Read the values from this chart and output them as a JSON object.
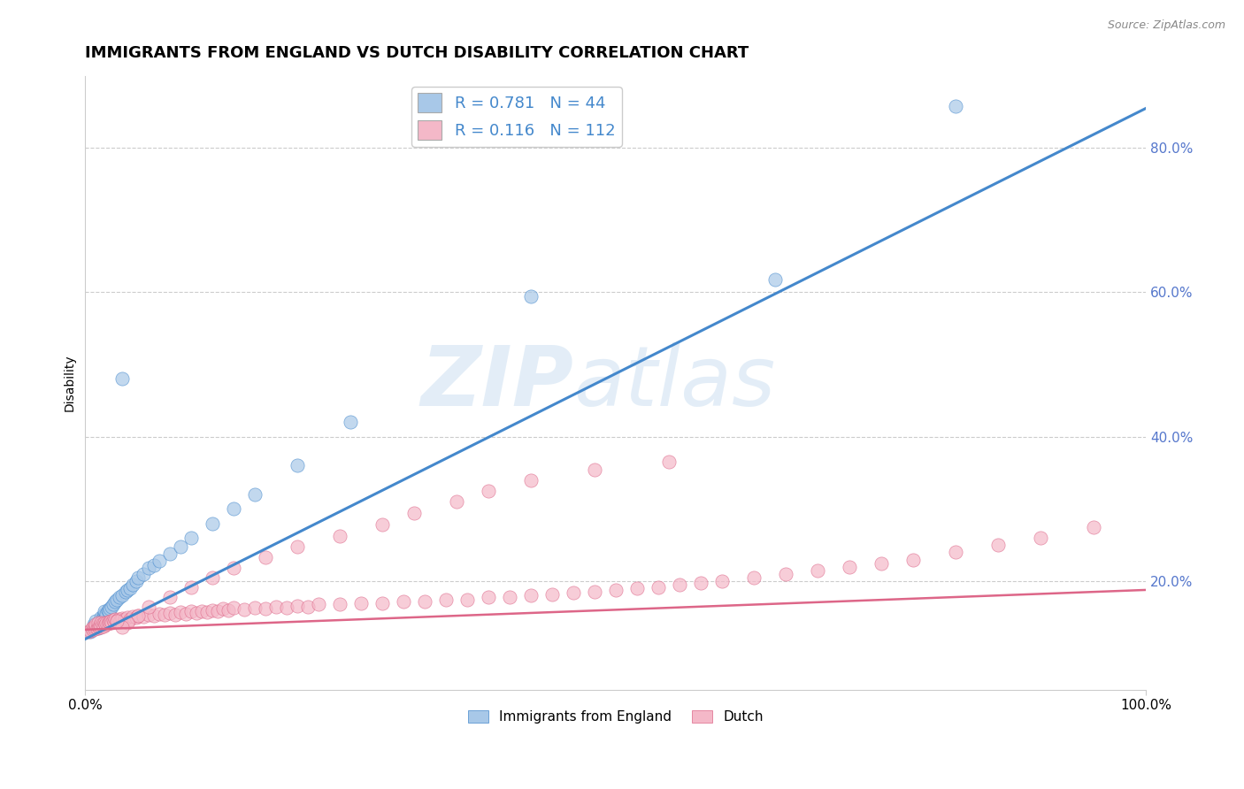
{
  "title": "IMMIGRANTS FROM ENGLAND VS DUTCH DISABILITY CORRELATION CHART",
  "source": "Source: ZipAtlas.com",
  "ylabel": "Disability",
  "watermark": "ZIPatlas",
  "blue_R": 0.781,
  "blue_N": 44,
  "pink_R": 0.116,
  "pink_N": 112,
  "blue_color": "#a8c8e8",
  "pink_color": "#f4b8c8",
  "blue_line_color": "#4488cc",
  "pink_line_color": "#dd6688",
  "ytick_color": "#5577cc",
  "yticks_labels": [
    "20.0%",
    "40.0%",
    "60.0%",
    "80.0%"
  ],
  "ytick_vals": [
    0.2,
    0.4,
    0.6,
    0.8
  ],
  "blue_scatter_x": [
    0.005,
    0.008,
    0.01,
    0.012,
    0.013,
    0.015,
    0.015,
    0.016,
    0.017,
    0.018,
    0.018,
    0.019,
    0.02,
    0.021,
    0.022,
    0.023,
    0.025,
    0.026,
    0.028,
    0.03,
    0.032,
    0.035,
    0.038,
    0.04,
    0.042,
    0.045,
    0.048,
    0.05,
    0.055,
    0.06,
    0.065,
    0.07,
    0.08,
    0.09,
    0.1,
    0.12,
    0.14,
    0.16,
    0.2,
    0.25,
    0.42,
    0.65,
    0.82,
    0.035
  ],
  "blue_scatter_y": [
    0.13,
    0.14,
    0.145,
    0.135,
    0.14,
    0.145,
    0.15,
    0.148,
    0.152,
    0.155,
    0.158,
    0.15,
    0.155,
    0.16,
    0.158,
    0.162,
    0.165,
    0.168,
    0.172,
    0.175,
    0.178,
    0.18,
    0.185,
    0.188,
    0.19,
    0.195,
    0.2,
    0.205,
    0.21,
    0.218,
    0.222,
    0.228,
    0.238,
    0.248,
    0.26,
    0.28,
    0.3,
    0.32,
    0.36,
    0.42,
    0.595,
    0.618,
    0.858,
    0.48
  ],
  "pink_scatter_x": [
    0.003,
    0.005,
    0.006,
    0.007,
    0.008,
    0.009,
    0.01,
    0.01,
    0.011,
    0.012,
    0.012,
    0.013,
    0.014,
    0.015,
    0.015,
    0.016,
    0.017,
    0.018,
    0.019,
    0.02,
    0.021,
    0.022,
    0.023,
    0.024,
    0.025,
    0.026,
    0.027,
    0.028,
    0.03,
    0.031,
    0.033,
    0.035,
    0.037,
    0.04,
    0.042,
    0.045,
    0.048,
    0.05,
    0.055,
    0.06,
    0.065,
    0.07,
    0.075,
    0.08,
    0.085,
    0.09,
    0.095,
    0.1,
    0.105,
    0.11,
    0.115,
    0.12,
    0.125,
    0.13,
    0.135,
    0.14,
    0.15,
    0.16,
    0.17,
    0.18,
    0.19,
    0.2,
    0.21,
    0.22,
    0.24,
    0.26,
    0.28,
    0.3,
    0.32,
    0.34,
    0.36,
    0.38,
    0.4,
    0.42,
    0.44,
    0.46,
    0.48,
    0.5,
    0.52,
    0.54,
    0.56,
    0.58,
    0.6,
    0.63,
    0.66,
    0.69,
    0.72,
    0.75,
    0.78,
    0.82,
    0.86,
    0.9,
    0.95,
    0.55,
    0.48,
    0.42,
    0.38,
    0.35,
    0.31,
    0.28,
    0.24,
    0.2,
    0.17,
    0.14,
    0.12,
    0.1,
    0.08,
    0.06,
    0.05,
    0.04,
    0.035,
    0.03
  ],
  "pink_scatter_y": [
    0.13,
    0.132,
    0.135,
    0.133,
    0.136,
    0.134,
    0.137,
    0.14,
    0.135,
    0.138,
    0.142,
    0.136,
    0.139,
    0.143,
    0.137,
    0.141,
    0.138,
    0.142,
    0.14,
    0.143,
    0.141,
    0.144,
    0.142,
    0.145,
    0.143,
    0.146,
    0.144,
    0.147,
    0.145,
    0.148,
    0.146,
    0.149,
    0.147,
    0.15,
    0.148,
    0.151,
    0.15,
    0.152,
    0.151,
    0.153,
    0.152,
    0.155,
    0.153,
    0.156,
    0.154,
    0.157,
    0.155,
    0.158,
    0.156,
    0.159,
    0.157,
    0.16,
    0.158,
    0.162,
    0.16,
    0.163,
    0.161,
    0.164,
    0.162,
    0.165,
    0.163,
    0.166,
    0.165,
    0.168,
    0.168,
    0.17,
    0.17,
    0.172,
    0.172,
    0.175,
    0.175,
    0.178,
    0.178,
    0.18,
    0.182,
    0.184,
    0.186,
    0.188,
    0.19,
    0.192,
    0.195,
    0.198,
    0.2,
    0.205,
    0.21,
    0.215,
    0.22,
    0.225,
    0.23,
    0.24,
    0.25,
    0.26,
    0.275,
    0.365,
    0.355,
    0.34,
    0.325,
    0.31,
    0.295,
    0.278,
    0.262,
    0.248,
    0.233,
    0.218,
    0.205,
    0.192,
    0.178,
    0.165,
    0.152,
    0.143,
    0.137,
    0.145
  ],
  "blue_line_x": [
    0.0,
    1.0
  ],
  "blue_line_y": [
    0.12,
    0.855
  ],
  "pink_line_x": [
    0.0,
    1.0
  ],
  "pink_line_y": [
    0.133,
    0.188
  ],
  "xlim": [
    0.0,
    1.0
  ],
  "ylim": [
    0.05,
    0.9
  ],
  "legend_label_blue": "Immigrants from England",
  "legend_label_pink": "Dutch",
  "title_fontsize": 13,
  "axis_label_fontsize": 10,
  "tick_fontsize": 11,
  "legend_fontsize": 13
}
